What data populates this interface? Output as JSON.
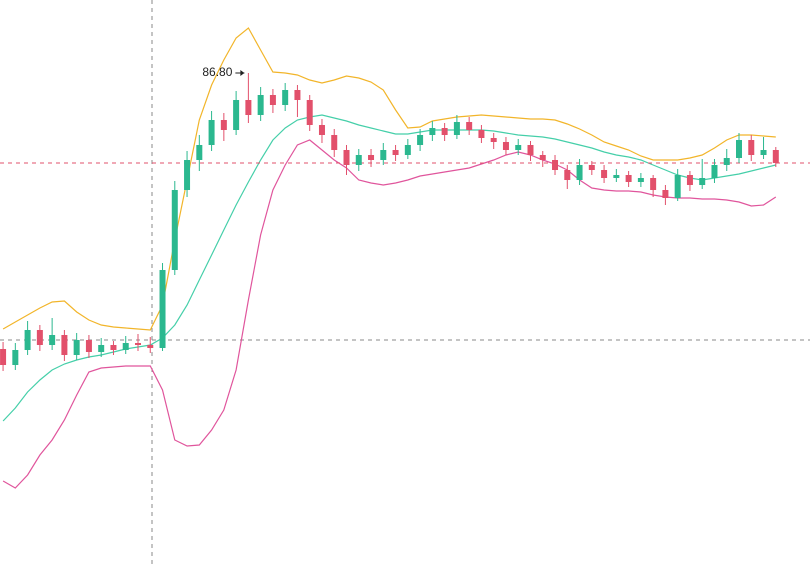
{
  "chart_data": {
    "type": "candlestick",
    "categories": [
      null,
      null,
      null,
      null,
      null,
      null,
      null,
      null,
      null,
      null,
      null,
      null,
      null,
      null,
      null,
      null,
      null,
      null,
      null,
      null,
      null,
      null,
      null,
      null,
      null,
      null,
      null,
      null,
      null,
      null,
      null,
      null,
      null,
      null,
      null,
      null,
      null,
      null,
      null,
      null,
      null,
      null,
      null,
      null,
      null,
      null,
      null,
      null,
      null,
      null,
      null,
      null,
      null,
      null,
      null,
      null,
      null,
      null,
      null,
      null,
      null,
      null,
      null,
      null
    ],
    "open": [
      73.0,
      72.2,
      72.95,
      73.95,
      73.2,
      73.7,
      72.7,
      73.45,
      72.85,
      73.2,
      72.95,
      73.3,
      73.2,
      73.05,
      76.95,
      80.95,
      82.45,
      83.2,
      84.45,
      83.95,
      85.45,
      84.7,
      85.7,
      85.2,
      85.95,
      85.45,
      84.2,
      83.7,
      82.95,
      82.2,
      82.7,
      82.45,
      82.95,
      82.7,
      83.2,
      83.7,
      84.05,
      83.7,
      84.35,
      83.95,
      83.55,
      83.35,
      82.95,
      83.2,
      82.7,
      82.45,
      81.95,
      81.45,
      82.2,
      81.95,
      81.55,
      81.7,
      81.35,
      81.55,
      80.95,
      80.55,
      81.7,
      81.2,
      81.55,
      82.2,
      82.55,
      83.45,
      82.7,
      82.95
    ],
    "high": [
      73.35,
      73.3,
      74.4,
      74.2,
      74.55,
      73.95,
      73.8,
      73.7,
      73.55,
      73.4,
      73.65,
      73.75,
      73.6,
      77.3,
      81.4,
      82.9,
      83.7,
      84.9,
      84.8,
      85.9,
      86.8,
      86.1,
      86.0,
      86.3,
      86.2,
      85.7,
      84.5,
      84.0,
      83.2,
      83.0,
      83.0,
      83.3,
      83.2,
      83.5,
      84.0,
      84.4,
      84.3,
      84.7,
      84.6,
      84.2,
      83.8,
      83.6,
      83.5,
      83.4,
      82.9,
      82.7,
      82.2,
      82.5,
      82.4,
      82.2,
      82.0,
      81.9,
      81.8,
      81.7,
      81.2,
      82.0,
      81.9,
      82.5,
      82.5,
      83.0,
      83.8,
      83.7,
      83.6,
      83.1
    ],
    "low": [
      71.9,
      71.95,
      72.7,
      72.9,
      72.95,
      72.4,
      72.45,
      72.55,
      72.6,
      72.7,
      72.75,
      72.9,
      72.8,
      72.9,
      76.7,
      80.6,
      81.9,
      82.9,
      83.4,
      83.7,
      84.3,
      84.4,
      84.8,
      84.9,
      84.6,
      83.9,
      83.3,
      82.6,
      81.7,
      81.9,
      82.1,
      82.2,
      82.4,
      82.5,
      82.9,
      83.4,
      83.4,
      83.5,
      83.7,
      83.3,
      83.0,
      82.7,
      82.7,
      82.4,
      82.1,
      81.7,
      81.0,
      81.2,
      81.7,
      81.3,
      81.35,
      81.1,
      81.1,
      80.6,
      80.2,
      80.4,
      80.9,
      81.0,
      81.3,
      81.9,
      82.3,
      82.4,
      82.5,
      82.1
    ],
    "close": [
      72.2,
      72.95,
      73.95,
      73.2,
      73.7,
      72.7,
      73.45,
      72.85,
      73.2,
      72.95,
      73.3,
      73.2,
      73.05,
      76.95,
      80.95,
      82.45,
      83.2,
      84.45,
      83.95,
      85.45,
      84.7,
      85.7,
      85.2,
      85.95,
      85.45,
      84.2,
      83.7,
      82.95,
      82.2,
      82.7,
      82.45,
      82.95,
      82.7,
      83.2,
      83.7,
      84.05,
      83.7,
      84.35,
      83.95,
      83.55,
      83.35,
      82.95,
      83.2,
      82.7,
      82.45,
      81.95,
      81.45,
      82.2,
      81.95,
      81.55,
      81.7,
      81.35,
      81.55,
      80.95,
      80.55,
      81.7,
      81.2,
      81.55,
      82.2,
      82.55,
      83.45,
      82.7,
      82.95,
      82.3
    ],
    "up_color": "#2bb88f",
    "down_color": "#e2506b",
    "overlays": [
      {
        "color": "#f2b52a",
        "values": [
          74.0,
          74.35,
          74.7,
          75.05,
          75.35,
          75.4,
          74.85,
          74.45,
          74.2,
          74.1,
          74.05,
          74.0,
          73.95,
          75.2,
          78.45,
          81.45,
          84.45,
          86.2,
          87.45,
          88.55,
          89.05,
          87.95,
          86.85,
          86.8,
          86.7,
          86.45,
          86.3,
          86.45,
          86.65,
          86.55,
          86.35,
          85.95,
          84.95,
          84.05,
          84.1,
          84.4,
          84.5,
          84.6,
          84.65,
          84.7,
          84.65,
          84.6,
          84.55,
          84.5,
          84.5,
          84.45,
          84.25,
          84.0,
          83.7,
          83.35,
          83.15,
          82.95,
          82.65,
          82.45,
          82.45,
          82.45,
          82.55,
          82.7,
          83.05,
          83.45,
          83.7,
          83.7,
          83.65,
          83.6
        ]
      },
      {
        "color": "#45cfa9",
        "values": [
          69.4,
          70.05,
          70.85,
          71.45,
          71.95,
          72.25,
          72.45,
          72.6,
          72.7,
          72.85,
          73.0,
          73.1,
          73.2,
          73.55,
          74.2,
          75.2,
          76.45,
          77.7,
          78.95,
          80.2,
          81.35,
          82.45,
          83.45,
          84.05,
          84.45,
          84.6,
          84.7,
          84.55,
          84.4,
          84.2,
          84.05,
          83.9,
          83.75,
          83.75,
          83.85,
          83.95,
          83.95,
          83.95,
          83.95,
          83.95,
          83.9,
          83.8,
          83.7,
          83.65,
          83.6,
          83.5,
          83.35,
          83.2,
          83.05,
          82.85,
          82.7,
          82.6,
          82.45,
          82.2,
          81.95,
          81.7,
          81.55,
          81.45,
          81.55,
          81.65,
          81.75,
          81.9,
          82.05,
          82.2
        ]
      },
      {
        "color": "#e0559c",
        "values": [
          66.4,
          66.05,
          66.7,
          67.7,
          68.45,
          69.45,
          70.7,
          71.85,
          72.05,
          72.1,
          72.15,
          72.15,
          72.15,
          70.95,
          68.45,
          68.15,
          68.2,
          68.95,
          69.95,
          71.95,
          75.45,
          78.7,
          80.95,
          82.2,
          83.2,
          83.45,
          82.95,
          82.45,
          82.05,
          81.45,
          81.3,
          81.2,
          81.3,
          81.45,
          81.65,
          81.75,
          81.85,
          81.95,
          82.05,
          82.25,
          82.45,
          82.7,
          82.85,
          82.7,
          82.45,
          82.25,
          81.95,
          81.45,
          81.05,
          80.95,
          80.9,
          80.9,
          80.85,
          80.7,
          80.6,
          80.55,
          80.55,
          80.5,
          80.5,
          80.45,
          80.35,
          80.15,
          80.2,
          80.6
        ]
      }
    ],
    "max_label": "86.80",
    "ylim": [
      62.15,
      90.45
    ]
  }
}
